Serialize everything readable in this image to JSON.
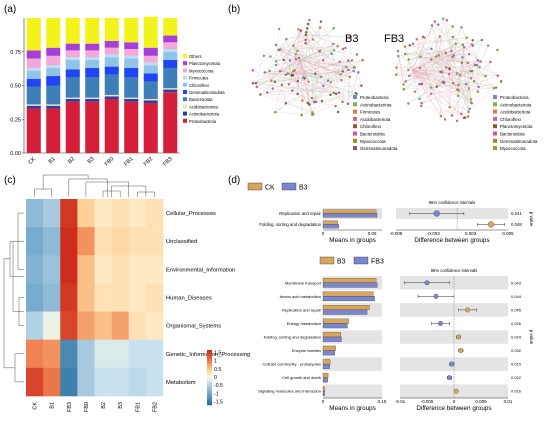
{
  "panels": {
    "a": "(a)",
    "b": "(b)",
    "c": "(c)",
    "d": "(d)"
  },
  "chart_a": {
    "type": "bar",
    "stacked": true,
    "categories": [
      "CK",
      "B1",
      "B2",
      "B3",
      "FB0",
      "FB1",
      "FB2",
      "FB3"
    ],
    "ylim": [
      0,
      1.0
    ],
    "yticks": [
      "0.00",
      "0.25",
      "0.50",
      "0.75"
    ],
    "series": [
      {
        "name": "Proteobacteria",
        "color": "#d51f3a",
        "values": [
          0.33,
          0.33,
          0.38,
          0.38,
          0.4,
          0.38,
          0.37,
          0.45
        ]
      },
      {
        "name": "Actinobacteriota",
        "color": "#2b3fa8",
        "values": [
          0.02,
          0.02,
          0.02,
          0.02,
          0.02,
          0.02,
          0.02,
          0.02
        ]
      },
      {
        "name": "Acidobacteriota",
        "color": "#f2e4b6",
        "values": [
          0.01,
          0.01,
          0.01,
          0.01,
          0.01,
          0.01,
          0.01,
          0.01
        ]
      },
      {
        "name": "Bacteroidota",
        "color": "#3f7fb8",
        "values": [
          0.13,
          0.14,
          0.15,
          0.15,
          0.15,
          0.15,
          0.13,
          0.15
        ]
      },
      {
        "name": "Gemmatimonadota",
        "color": "#1f46f0",
        "values": [
          0.06,
          0.07,
          0.06,
          0.07,
          0.06,
          0.07,
          0.06,
          0.06
        ]
      },
      {
        "name": "Chloroflexi",
        "color": "#8fc4e8",
        "values": [
          0.06,
          0.06,
          0.07,
          0.06,
          0.07,
          0.07,
          0.06,
          0.06
        ]
      },
      {
        "name": "Firmicutes",
        "color": "#b8e0f2",
        "values": [
          0.02,
          0.02,
          0.02,
          0.02,
          0.02,
          0.02,
          0.02,
          0.02
        ]
      },
      {
        "name": "Myxococcota",
        "color": "#f3a8d8",
        "values": [
          0.07,
          0.07,
          0.05,
          0.05,
          0.05,
          0.05,
          0.05,
          0.05
        ]
      },
      {
        "name": "Planctomycetota",
        "color": "#a63fd8",
        "values": [
          0.06,
          0.06,
          0.05,
          0.05,
          0.05,
          0.05,
          0.06,
          0.05
        ]
      },
      {
        "name": "Others",
        "color": "#f2f21d",
        "values": [
          0.24,
          0.22,
          0.19,
          0.19,
          0.17,
          0.18,
          0.23,
          0.13
        ]
      }
    ],
    "legend": [
      "Others",
      "Planctomycetota",
      "Myxococcota",
      "Firmicutes",
      "Chloroflexi",
      "Gemmatimonadota",
      "Bacteroidota",
      "Acidobacteriota",
      "Actinobacteriota",
      "Proteobacteria"
    ],
    "legend_colors": [
      "#f2f21d",
      "#a63fd8",
      "#f3a8d8",
      "#b8e0f2",
      "#8fc4e8",
      "#1f46f0",
      "#3f7fb8",
      "#f2e4b6",
      "#2b3fa8",
      "#d51f3a"
    ]
  },
  "network": {
    "left_title": "B3",
    "right_title": "FB3",
    "left_legend": [
      "Proteobacteria",
      "Actinobacteriota",
      "Firmicutes",
      "Acidobacteriota",
      "Chloroflexi",
      "Bacteroidota",
      "Myxococcota",
      "Gemmatimonadota"
    ],
    "left_colors": [
      "#7b84c8",
      "#7ab35a",
      "#e07a3a",
      "#cc6699",
      "#8a5a2b",
      "#d14fb8",
      "#a08a2a",
      "#8a4f6b"
    ],
    "right_legend": [
      "Proteobacteria",
      "Actinobacteriota",
      "Acidobacteriota",
      "Chloroflexi",
      "Planctomycetota",
      "Bacteroidota",
      "Gemmatimonadota",
      "Myxococcota"
    ],
    "right_colors": [
      "#7b84c8",
      "#7ab35a",
      "#e07a3a",
      "#cc6699",
      "#8a5a2b",
      "#d14fb8",
      "#a08a2a",
      "#9a9a30"
    ]
  },
  "heatmap": {
    "rows": [
      "Cellular_Processes",
      "Unclassified",
      "Environmental_Information",
      "Human_Diseases",
      "Organismal_Systems",
      "Genetic_Information_Processing",
      "Metabolism"
    ],
    "cols": [
      "CK",
      "B1",
      "FB3",
      "FB0",
      "B2",
      "B3",
      "FB1",
      "FB2"
    ],
    "values": [
      [
        -0.8,
        -0.6,
        1.6,
        0.5,
        0.2,
        0.3,
        0.2,
        0.3
      ],
      [
        -1.0,
        -0.8,
        1.7,
        0.9,
        0.3,
        0.4,
        0.3,
        0.3
      ],
      [
        -0.9,
        -0.7,
        1.7,
        0.6,
        0.2,
        0.3,
        0.2,
        0.2
      ],
      [
        -1.0,
        -0.8,
        1.6,
        0.6,
        0.3,
        0.3,
        0.2,
        0.3
      ],
      [
        -0.5,
        -0.1,
        1.5,
        0.8,
        0.6,
        0.8,
        0.3,
        0.2
      ],
      [
        1.0,
        0.9,
        -1.4,
        -0.6,
        -0.2,
        -0.2,
        -0.3,
        -0.3
      ],
      [
        1.5,
        1.1,
        -1.5,
        -0.6,
        -0.3,
        -0.3,
        -0.4,
        -0.3
      ]
    ],
    "scale_ticks": [
      "1.5",
      "1",
      "0.5",
      "0",
      "-0.5",
      "-1",
      "-1.5"
    ]
  },
  "stamp_top": {
    "legend": [
      "CK",
      "B3"
    ],
    "legend_colors": [
      "#d8a55a",
      "#7b86d0"
    ],
    "ci_title": "95% confidence intervals",
    "features": [
      "Replication and repair",
      "Folding, sorting and degradation"
    ],
    "means_a": [
      0.054,
      0.015
    ],
    "means_b": [
      0.055,
      0.016
    ],
    "means_xticks": [
      "0",
      "0.05"
    ],
    "means_xlabel": "Means in groups",
    "diff": [
      -0.003,
      0.005
    ],
    "diff_lo": [
      -0.007,
      0.003
    ],
    "diff_hi": [
      0.001,
      0.007
    ],
    "diff_xticks": [
      "-0.008",
      "-0.003",
      "0.003",
      "0.005"
    ],
    "diff_xlabel": "Difference between groups",
    "pvalues": [
      "0.241",
      "0.048"
    ],
    "pvalue_label": "p value"
  },
  "stamp_bottom": {
    "legend": [
      "B3",
      "FB3"
    ],
    "legend_colors": [
      "#d8a55a",
      "#7b86d0"
    ],
    "ci_title": "95% confidence intervals",
    "features": [
      "Membrane transport",
      "Amino acid metabolism",
      "Replication and repair",
      "Energy metabolism",
      "Folding, sorting and degradation",
      "Enzyme families",
      "Cellular community - prokaryotes",
      "Cell growth and death",
      "Signaling molecules and interaction"
    ],
    "means_a": [
      0.135,
      0.128,
      0.118,
      0.065,
      0.045,
      0.032,
      0.018,
      0.013,
      0.004
    ],
    "means_b": [
      0.138,
      0.131,
      0.112,
      0.062,
      0.047,
      0.03,
      0.017,
      0.012,
      0.004
    ],
    "means_xticks": [
      "0",
      "0.15"
    ],
    "means_xlabel": "Means in groups",
    "diff": [
      -0.006,
      -0.004,
      0.003,
      -0.003,
      0.001,
      0.0015,
      -0.0005,
      -0.001,
      0.0005
    ],
    "diff_lo": [
      -0.011,
      -0.008,
      0.001,
      -0.005,
      0.0005,
      0.001,
      -0.001,
      -0.0015,
      0.0002
    ],
    "diff_hi": [
      -0.001,
      0.0,
      0.005,
      -0.001,
      0.0015,
      0.002,
      0.0,
      -0.0005,
      0.0008
    ],
    "diff_xticks": [
      "-0.01",
      "-0.005",
      "0",
      "0.005",
      "0.01"
    ],
    "diff_xlabel": "Difference between groups",
    "pvalues": [
      "0.043",
      "0.044",
      "0.045",
      "0.026",
      "0.024",
      "0.032",
      "0.015",
      "0.022",
      "0.016"
    ],
    "pvalue_label": "p value"
  }
}
